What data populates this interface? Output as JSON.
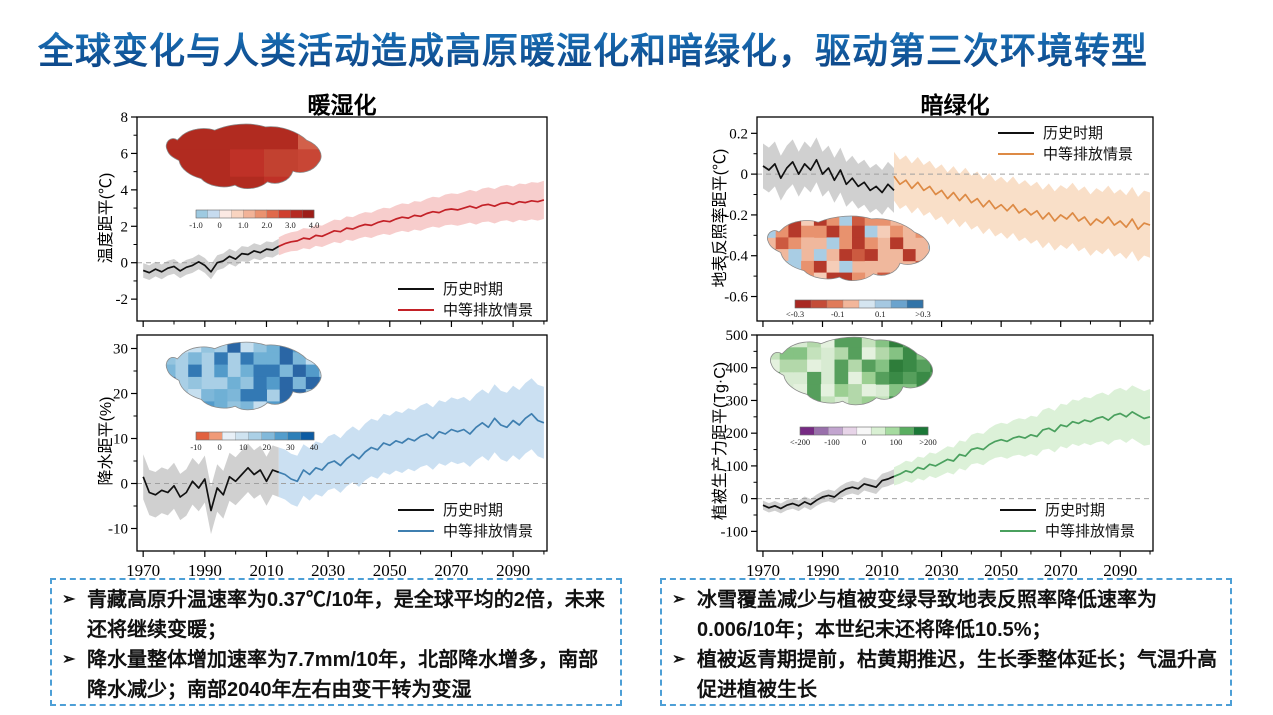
{
  "slide_title": "全球变化与人类活动造成高原暖湿化和暗绿化，驱动第三次环境转型",
  "panel_left_title": "暖湿化",
  "panel_right_title": "暗绿化",
  "legend_labels": {
    "hist": "历史时期",
    "future": "中等排放情景"
  },
  "bullet_char": "➢",
  "notes_left": [
    "青藏高原升温速率为0.37℃/10年，是全球平均的2倍，未来还将继续变暖；",
    "降水量整体增加速率为7.7mm/10年，北部降水增多，南部降水减少；南部2040年左右由变干转为变湿"
  ],
  "notes_right": [
    "冰雪覆盖减少与植被变绿导致地表反照率降低速率为0.006/10年；本世纪末还将降低10.5%；",
    "植被返青期提前，枯黄期推迟，生长季整体延长；气温升高促进植被生长"
  ],
  "colors": {
    "title_c1": "#1e7ec6",
    "title_c2": "#0a3e7f",
    "box_border": "#4d9fd6",
    "hist_line": "#111111",
    "hist_band": "#c4c4c4"
  },
  "chart_data": [
    {
      "id": "temperature-anomaly",
      "type": "line",
      "panel": "暖湿化",
      "ylabel": "温度距平(℃)",
      "ylim": [
        -3.2,
        8
      ],
      "ytick_values": [
        8,
        6,
        4,
        2,
        0,
        -2
      ],
      "ytick_labels": [
        "8",
        "6",
        "4",
        "2",
        "0",
        "-2"
      ],
      "xlim": [
        1968,
        2101
      ],
      "xticks": [
        1970,
        1990,
        2010,
        2030,
        2050,
        2070,
        2090
      ],
      "zero_line": true,
      "legend_position": "bottom-right",
      "series": [
        {
          "name": "历史时期",
          "color": "#111111",
          "band_color": "#c4c4c4",
          "x0": 1970,
          "step": 2,
          "band": [
            0.4,
            0.42
          ],
          "values": [
            -0.42,
            -0.55,
            -0.35,
            -0.5,
            -0.3,
            -0.2,
            -0.45,
            -0.25,
            -0.15,
            0.05,
            -0.15,
            -0.5,
            0,
            0.1,
            0.35,
            0.2,
            0.5,
            0.45,
            0.65,
            0.55,
            0.75,
            0.7,
            0.9
          ]
        },
        {
          "name": "中等排放情景",
          "color": "#c32127",
          "band_color": "#f6c8c6",
          "x0": 2014,
          "step": 2,
          "band": [
            0.5,
            1.05
          ],
          "values": [
            0.9,
            1.05,
            1.15,
            1.2,
            1.35,
            1.3,
            1.5,
            1.45,
            1.6,
            1.75,
            1.7,
            1.9,
            1.85,
            2.0,
            2.1,
            2.05,
            2.2,
            2.3,
            2.25,
            2.4,
            2.5,
            2.45,
            2.6,
            2.55,
            2.7,
            2.8,
            2.75,
            2.9,
            2.95,
            2.9,
            3.0,
            3.1,
            3.0,
            3.15,
            3.2,
            3.1,
            3.25,
            3.3,
            3.2,
            3.35,
            3.3,
            3.4,
            3.35,
            3.45
          ]
        }
      ],
      "inset_map": {
        "region": "青藏高原",
        "base": "#c24130",
        "cells": [
          "#b12b20",
          "#b12b20",
          "#c24130",
          "#bf3127"
        ],
        "cells_east": [
          "#cc4b38",
          "#d2604a",
          "#c84635"
        ],
        "grid": [
          5,
          3
        ],
        "density": 1.0,
        "colorbar": {
          "colors": [
            "#9ecae1",
            "#c6dbef",
            "#fbe9e3",
            "#f9d4c0",
            "#f2b398",
            "#ea9270",
            "#e06a4c",
            "#cf3e2d",
            "#b52a22",
            "#9d1d18"
          ],
          "labels": [
            "-1.0",
            "0",
            "1.0",
            "2.0",
            "3.0",
            "4.0"
          ]
        }
      }
    },
    {
      "id": "precipitation-anomaly",
      "type": "line",
      "panel": "暖湿化",
      "ylabel": "降水距平(%)",
      "ylim": [
        -15,
        33
      ],
      "ytick_values": [
        30,
        20,
        10,
        0,
        -10
      ],
      "ytick_labels": [
        "30",
        "20",
        "10",
        "0",
        "-10"
      ],
      "xlim": [
        1968,
        2101
      ],
      "xticks": [
        1970,
        1990,
        2010,
        2030,
        2050,
        2070,
        2090
      ],
      "zero_line": true,
      "legend_position": "bottom-right",
      "series": [
        {
          "name": "历史时期",
          "color": "#111111",
          "band_color": "#c4c4c4",
          "x0": 1970,
          "step": 2,
          "band": [
            5,
            5.5
          ],
          "values": [
            1.5,
            -2,
            -2.5,
            -1.5,
            -2,
            -0.5,
            -3,
            -2,
            0.5,
            -1,
            1,
            -6,
            -1,
            -2.5,
            1.5,
            0.5,
            2,
            3.5,
            2,
            3,
            0.5,
            3,
            2.5
          ]
        },
        {
          "name": "中等排放情景",
          "color": "#3f7fb0",
          "band_color": "#c5ddf1",
          "x0": 2014,
          "step": 2,
          "band": [
            5.5,
            8
          ],
          "values": [
            2.5,
            2,
            1,
            0.5,
            3,
            2,
            3.5,
            3,
            4.5,
            5,
            4,
            5.5,
            6.5,
            5.5,
            7,
            8,
            7.5,
            9,
            8.5,
            9.5,
            9,
            10,
            9.5,
            10.5,
            11,
            10,
            11.5,
            11,
            12,
            11.5,
            12,
            11,
            12.5,
            13.5,
            12.5,
            14.5,
            13,
            12.5,
            14,
            13,
            14.5,
            15.5,
            14,
            13.5
          ]
        }
      ],
      "inset_map": {
        "region": "青藏高原",
        "base": "#a9cfe6",
        "cells": [
          "#7db7d9",
          "#539bca",
          "#3379b4",
          "#94c4df",
          "#c6dfef",
          "#2a66a5",
          "#6fb0d5"
        ],
        "grid": [
          13,
          7
        ],
        "density": 0.8,
        "colorbar": {
          "colors": [
            "#e2613f",
            "#f09a77",
            "#e8f0f7",
            "#cfe3f0",
            "#abd0e6",
            "#82b9da",
            "#539dcc",
            "#2c7fb8",
            "#0d5ca3"
          ],
          "labels": [
            "-10",
            "0",
            "10",
            "20",
            "30",
            "40"
          ]
        }
      }
    },
    {
      "id": "surface-albedo-anomaly",
      "type": "line",
      "panel": "暗绿化",
      "ylabel": "地表反照率距平(℃)",
      "ylim": [
        -0.72,
        0.28
      ],
      "ytick_values": [
        0.2,
        0,
        -0.2,
        -0.4,
        -0.6
      ],
      "ytick_labels": [
        "0.2",
        "0",
        "-0.2",
        "-0.4",
        "-0.6"
      ],
      "xlim": [
        1968,
        2101
      ],
      "xticks": [
        1970,
        1990,
        2010,
        2030,
        2050,
        2070,
        2090
      ],
      "zero_line": true,
      "legend_position": "top-right",
      "series": [
        {
          "name": "历史时期",
          "color": "#111111",
          "band_color": "#c4c4c4",
          "x0": 1970,
          "step": 2,
          "band": [
            0.11,
            0.11
          ],
          "values": [
            0.04,
            0.02,
            0.05,
            -0.02,
            0.03,
            0.06,
            0,
            0.05,
            0.02,
            0.07,
            0,
            0.03,
            -0.03,
            0.02,
            -0.05,
            -0.02,
            -0.06,
            -0.04,
            -0.08,
            -0.06,
            -0.09,
            -0.05,
            -0.08
          ]
        },
        {
          "name": "中等排放情景",
          "color": "#dd8a45",
          "band_color": "#f8dcc2",
          "x0": 2014,
          "step": 2,
          "band": [
            0.12,
            0.16
          ],
          "values": [
            -0.01,
            -0.05,
            -0.03,
            -0.07,
            -0.04,
            -0.08,
            -0.06,
            -0.1,
            -0.08,
            -0.12,
            -0.09,
            -0.13,
            -0.1,
            -0.14,
            -0.12,
            -0.16,
            -0.13,
            -0.17,
            -0.15,
            -0.18,
            -0.15,
            -0.19,
            -0.17,
            -0.2,
            -0.18,
            -0.22,
            -0.19,
            -0.23,
            -0.2,
            -0.22,
            -0.19,
            -0.23,
            -0.21,
            -0.25,
            -0.22,
            -0.24,
            -0.21,
            -0.25,
            -0.23,
            -0.26,
            -0.22,
            -0.27,
            -0.24,
            -0.25
          ]
        }
      ],
      "inset_map": {
        "region": "青藏高原",
        "base": "#f0b89d",
        "cells": [
          "#b5392a",
          "#cc5a40",
          "#e8926e",
          "#f5cdb8",
          "#b5392a",
          "#f0b89d",
          "#a9cde4",
          "#e8926e"
        ],
        "grid": [
          14,
          7
        ],
        "density": 0.85,
        "colorbar": {
          "colors": [
            "#a92822",
            "#c44c38",
            "#e07b5a",
            "#f2b69a",
            "#d5e5f0",
            "#a5c8e1",
            "#6ba3cd",
            "#3274a8"
          ],
          "labels": [
            "<-0.3",
            "-0.1",
            "0.1",
            ">0.3"
          ]
        }
      }
    },
    {
      "id": "vegetation-productivity-anomaly",
      "type": "line",
      "panel": "暗绿化",
      "ylabel": "植被生产力距平(Tg·C)",
      "ylim": [
        -160,
        500
      ],
      "ytick_values": [
        500,
        400,
        300,
        200,
        100,
        0,
        -100
      ],
      "ytick_labels": [
        "500",
        "400",
        "300",
        "200",
        "100",
        "0",
        "-100"
      ],
      "xlim": [
        1968,
        2101
      ],
      "xticks": [
        1970,
        1990,
        2010,
        2030,
        2050,
        2070,
        2090
      ],
      "zero_line": true,
      "legend_position": "bottom-right",
      "series": [
        {
          "name": "历史时期",
          "color": "#111111",
          "band_color": "#c4c4c4",
          "x0": 1970,
          "step": 2,
          "band": [
            14,
            22
          ],
          "values": [
            -20,
            -28,
            -22,
            -30,
            -20,
            -15,
            -22,
            -10,
            -18,
            -5,
            5,
            10,
            5,
            20,
            30,
            35,
            30,
            45,
            40,
            35,
            55,
            60,
            68
          ]
        },
        {
          "name": "中等排放情景",
          "color": "#4aa05e",
          "band_color": "#d8f0d4",
          "x0": 2014,
          "step": 2,
          "band": [
            28,
            85
          ],
          "values": [
            68,
            75,
            85,
            80,
            95,
            90,
            105,
            100,
            110,
            120,
            115,
            135,
            130,
            150,
            155,
            150,
            165,
            175,
            180,
            175,
            185,
            190,
            185,
            195,
            190,
            210,
            215,
            205,
            225,
            220,
            235,
            230,
            240,
            235,
            245,
            250,
            240,
            255,
            260,
            250,
            265,
            255,
            245,
            250
          ]
        }
      ],
      "inset_map": {
        "region": "青藏高原",
        "base": "#d8ebd2",
        "cells": [
          "#b3d8aa",
          "#85c283",
          "#569f5c",
          "#e4f1de",
          "#c4e2bc",
          "#9ccf92"
        ],
        "cells_east": [
          "#3a8a46",
          "#2e7d3a",
          "#569f5c",
          "#85c283"
        ],
        "grid": [
          13,
          7
        ],
        "density": 0.85,
        "colorbar": {
          "colors": [
            "#762a83",
            "#9970ab",
            "#c2a5cf",
            "#e7d4e8",
            "#f7f7f7",
            "#d9f0d3",
            "#a6dba0",
            "#5aae61",
            "#1b7837"
          ],
          "labels": [
            "<-200",
            "-100",
            "0",
            "100",
            ">200"
          ]
        }
      }
    }
  ]
}
